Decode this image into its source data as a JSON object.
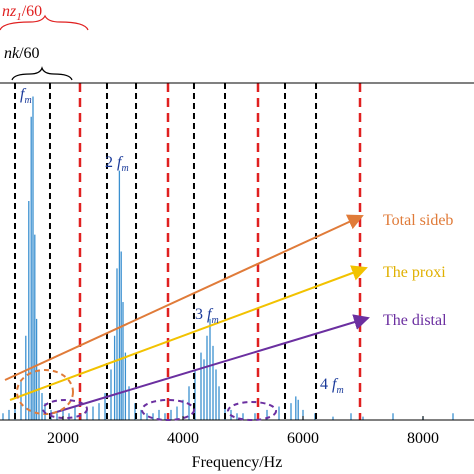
{
  "chart_data": {
    "type": "spectrum",
    "xlabel": "Frequency/Hz",
    "xlim": [
      950,
      8850
    ],
    "ylim": [
      0,
      1
    ],
    "xticks": [
      2000,
      4000,
      6000,
      8000
    ],
    "color": "#3a90d0",
    "x": [
      1000,
      1100,
      1200,
      1300,
      1380,
      1430,
      1470,
      1500,
      1530,
      1560,
      1600,
      1650,
      1700,
      1800,
      1900,
      2000,
      2100,
      2200,
      2300,
      2400,
      2500,
      2600,
      2700,
      2800,
      2860,
      2900,
      2940,
      2970,
      3000,
      3040,
      3100,
      3200,
      3300,
      3400,
      3500,
      3600,
      3700,
      3800,
      3900,
      4000,
      4100,
      4200,
      4300,
      4350,
      4400,
      4450,
      4500,
      4550,
      4600,
      4700,
      4800,
      4900,
      5000,
      5200,
      5400,
      5600,
      5800,
      5880,
      5920,
      6000,
      6200,
      6500,
      6800,
      7000,
      7500,
      8000,
      8500
    ],
    "values": [
      0.02,
      0.03,
      0.05,
      0.12,
      0.25,
      0.65,
      0.9,
      0.96,
      0.55,
      0.3,
      0.15,
      0.08,
      0.05,
      0.03,
      0.02,
      0.03,
      0.02,
      0.04,
      0.02,
      0.03,
      0.04,
      0.05,
      0.08,
      0.15,
      0.25,
      0.45,
      0.74,
      0.5,
      0.35,
      0.2,
      0.1,
      0.05,
      0.03,
      0.02,
      0.02,
      0.03,
      0.02,
      0.03,
      0.04,
      0.06,
      0.1,
      0.15,
      0.2,
      0.18,
      0.25,
      0.3,
      0.22,
      0.15,
      0.1,
      0.05,
      0.03,
      0.02,
      0.02,
      0.02,
      0.03,
      0.04,
      0.05,
      0.07,
      0.06,
      0.03,
      0.02,
      0.01,
      0.02,
      0.01,
      0.02,
      0.01,
      0.02
    ],
    "marker_lines": [
      {
        "color": "#000000",
        "x": [
          1200,
          1783,
          2733,
          3217,
          4183,
          4700,
          5700,
          6217
        ]
      },
      {
        "color": "#e02020",
        "x": [
          2283,
          3750,
          5250,
          6950
        ]
      }
    ],
    "harmonic_labels": [
      {
        "coef": "",
        "f": "f",
        "sub": "m"
      },
      {
        "coef": "2 ",
        "f": "f",
        "sub": "m"
      },
      {
        "coef": "3 ",
        "f": "f",
        "sub": "m"
      },
      {
        "coef": "4 ",
        "f": "f",
        "sub": "m"
      }
    ],
    "legend": [
      "Total sideb",
      "The proxi",
      "The distal"
    ],
    "top_labels": [
      {
        "num": "nz",
        "sub": "1",
        "den": "/60"
      },
      {
        "num": "nk",
        "den": "/60"
      }
    ]
  }
}
